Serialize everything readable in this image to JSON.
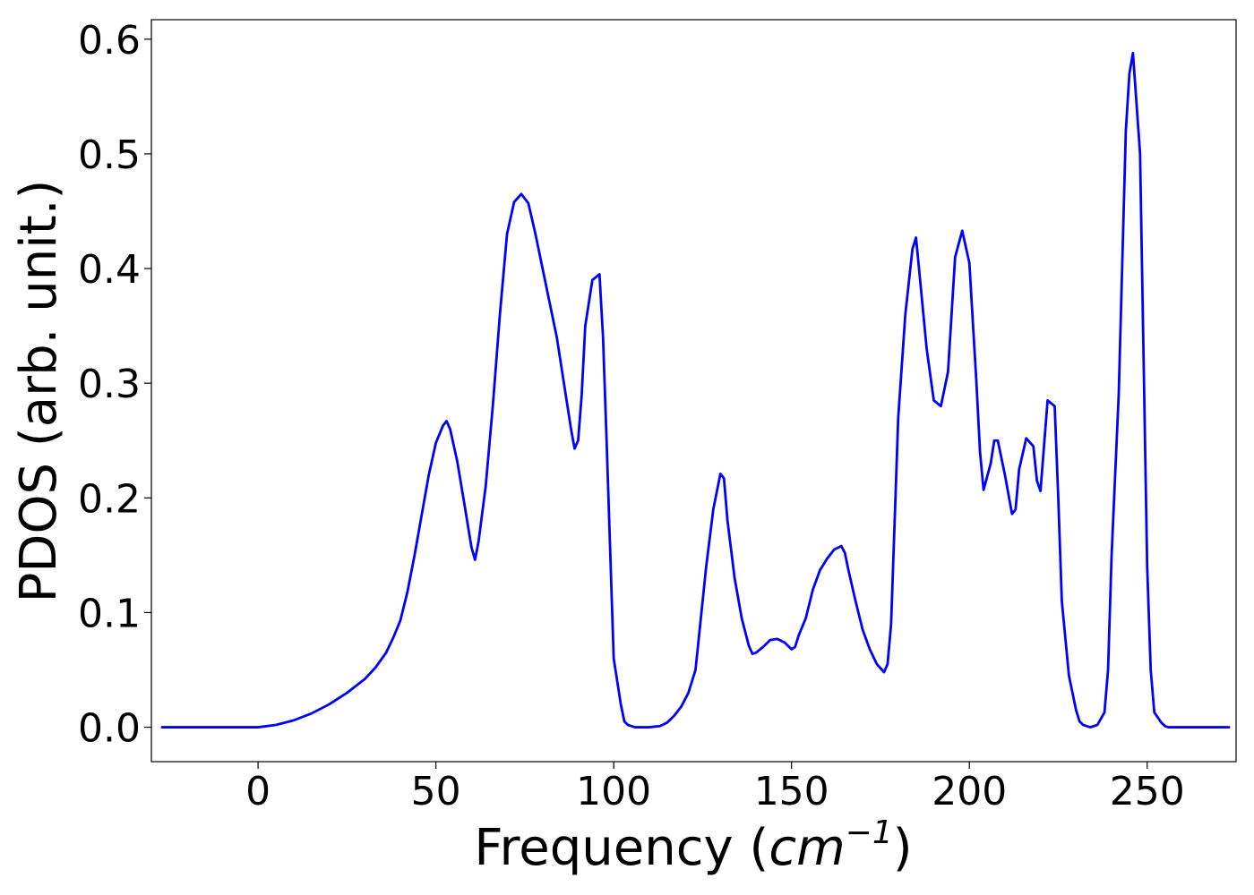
{
  "chart_data": {
    "type": "line",
    "title": "",
    "xlabel_main": "Frequency (",
    "xlabel_unit": "cm",
    "xlabel_exp": "−1",
    "xlabel_close": ")",
    "ylabel": "PDOS (arb. unit.)",
    "xlim": [
      -30,
      275
    ],
    "ylim": [
      -0.03,
      0.617
    ],
    "xticks": [
      0,
      50,
      100,
      150,
      200,
      250
    ],
    "yticks": [
      0.0,
      0.1,
      0.2,
      0.3,
      0.4,
      0.5,
      0.6
    ],
    "xtick_labels": [
      "0",
      "50",
      "100",
      "150",
      "200",
      "250"
    ],
    "ytick_labels": [
      "0.0",
      "0.1",
      "0.2",
      "0.3",
      "0.4",
      "0.5",
      "0.6"
    ],
    "grid": false,
    "legend": "none",
    "line_color": "#0000ff",
    "series": [
      {
        "x": [
          -27,
          -10,
          0,
          5,
          10,
          15,
          20,
          25,
          30,
          33,
          36,
          38,
          40,
          42,
          44,
          46,
          48,
          50,
          52,
          53,
          54,
          56,
          58,
          60,
          61,
          62,
          64,
          66,
          68,
          70,
          72,
          74,
          76,
          78,
          80,
          82,
          84,
          86,
          88,
          89,
          90,
          91,
          92,
          94,
          96,
          97,
          98,
          100,
          102,
          103,
          104,
          105,
          106,
          107,
          110,
          113,
          115,
          117,
          119,
          121,
          123,
          124,
          126,
          128,
          130,
          131,
          132,
          134,
          136,
          138,
          139,
          140,
          142,
          144,
          146,
          148,
          150,
          151,
          152,
          154,
          156,
          158,
          160,
          162,
          164,
          165,
          166,
          168,
          170,
          172,
          174,
          176,
          177,
          178,
          180,
          182,
          184,
          185,
          186,
          188,
          190,
          192,
          194,
          196,
          198,
          200,
          202,
          203,
          204,
          206,
          207,
          208,
          210,
          212,
          213,
          214,
          216,
          218,
          219,
          220,
          222,
          224,
          225,
          226,
          228,
          230,
          231,
          232,
          234,
          236,
          238,
          239,
          240,
          242,
          244,
          245,
          246,
          248,
          250,
          251,
          252,
          254,
          255,
          256,
          258,
          260,
          265,
          273
        ],
        "y": [
          0.0,
          0.0,
          0.0,
          0.002,
          0.006,
          0.012,
          0.02,
          0.03,
          0.042,
          0.052,
          0.065,
          0.078,
          0.093,
          0.118,
          0.15,
          0.185,
          0.22,
          0.248,
          0.263,
          0.267,
          0.26,
          0.232,
          0.195,
          0.157,
          0.146,
          0.162,
          0.21,
          0.28,
          0.36,
          0.43,
          0.458,
          0.465,
          0.457,
          0.43,
          0.4,
          0.37,
          0.34,
          0.3,
          0.26,
          0.243,
          0.25,
          0.29,
          0.35,
          0.39,
          0.395,
          0.34,
          0.25,
          0.06,
          0.02,
          0.005,
          0.002,
          0.001,
          0.0,
          0.0,
          0.0,
          0.001,
          0.004,
          0.01,
          0.018,
          0.03,
          0.05,
          0.08,
          0.14,
          0.19,
          0.221,
          0.217,
          0.18,
          0.13,
          0.095,
          0.071,
          0.064,
          0.065,
          0.07,
          0.076,
          0.077,
          0.074,
          0.068,
          0.07,
          0.08,
          0.095,
          0.12,
          0.137,
          0.147,
          0.155,
          0.158,
          0.152,
          0.137,
          0.11,
          0.085,
          0.068,
          0.055,
          0.048,
          0.055,
          0.09,
          0.27,
          0.36,
          0.417,
          0.427,
          0.395,
          0.33,
          0.285,
          0.28,
          0.31,
          0.41,
          0.433,
          0.405,
          0.3,
          0.24,
          0.207,
          0.23,
          0.25,
          0.25,
          0.22,
          0.186,
          0.19,
          0.225,
          0.252,
          0.245,
          0.215,
          0.206,
          0.285,
          0.28,
          0.2,
          0.11,
          0.045,
          0.015,
          0.005,
          0.002,
          0.0,
          0.002,
          0.013,
          0.05,
          0.15,
          0.29,
          0.52,
          0.57,
          0.588,
          0.5,
          0.14,
          0.05,
          0.013,
          0.004,
          0.001,
          0.0,
          0.0,
          0.0,
          0.0,
          0.0
        ]
      }
    ]
  }
}
